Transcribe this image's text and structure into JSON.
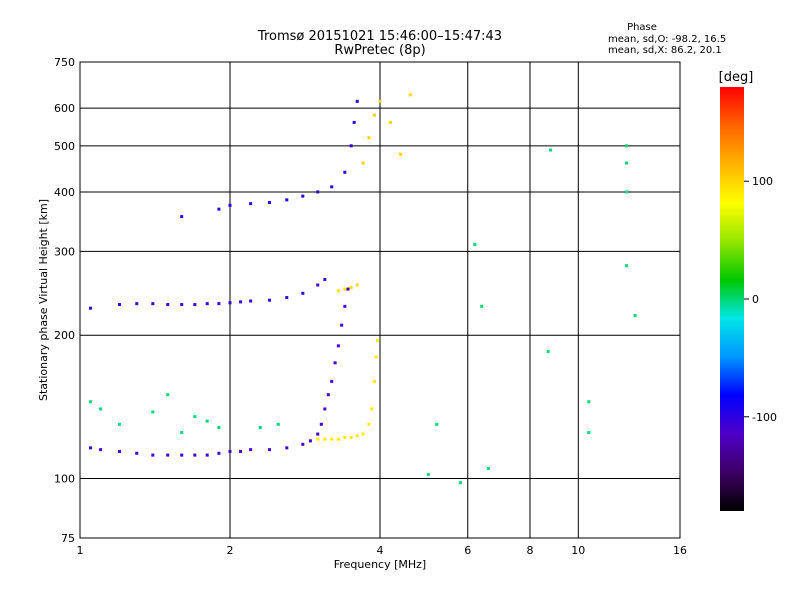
{
  "chart_data": {
    "type": "scatter",
    "title": "Tromsø 20151021 15:46:00–15:47:43",
    "subtitle": "RwPretec (8p)",
    "xlabel": "Frequency [MHz]",
    "ylabel": "Stationary phase Virtual Height [km]",
    "x_scale": "log",
    "y_scale": "log",
    "xlim": [
      1,
      16
    ],
    "ylim": [
      75,
      750
    ],
    "x_ticks": [
      1,
      2,
      4,
      6,
      8,
      10,
      16
    ],
    "y_ticks": [
      75,
      100,
      200,
      300,
      400,
      500,
      600,
      750
    ],
    "grid": true,
    "phase_box": {
      "title": "Phase",
      "line1": "mean, sd,O:  -98.2, 16.5",
      "line2": "mean, sd,X:  86.2, 20.1"
    },
    "colorbar": {
      "label": "[deg]",
      "range": [
        -180,
        180
      ],
      "ticks": [
        100,
        0,
        -100
      ],
      "colors": [
        "#000000",
        "#3c0064",
        "#5000c8",
        "#0000ff",
        "#0096ff",
        "#00e6e6",
        "#00c800",
        "#96e600",
        "#ffff00",
        "#ffb400",
        "#ff6400",
        "#ff0000"
      ]
    },
    "series": [
      {
        "trace": "o-mode-F-low",
        "points": [
          [
            1.05,
            116
          ],
          [
            1.1,
            115
          ],
          [
            1.2,
            114
          ],
          [
            1.3,
            113
          ],
          [
            1.4,
            112
          ],
          [
            1.5,
            112
          ],
          [
            1.6,
            112
          ],
          [
            1.7,
            112
          ],
          [
            1.8,
            112
          ],
          [
            1.9,
            113
          ],
          [
            2.0,
            114
          ],
          [
            2.1,
            114
          ],
          [
            2.2,
            115
          ],
          [
            2.4,
            115
          ],
          [
            2.6,
            116
          ],
          [
            2.8,
            118
          ],
          [
            2.9,
            120
          ],
          [
            3.0,
            124
          ],
          [
            3.05,
            130
          ],
          [
            3.1,
            140
          ],
          [
            3.15,
            150
          ],
          [
            3.2,
            160
          ],
          [
            3.25,
            175
          ],
          [
            3.3,
            190
          ],
          [
            3.35,
            210
          ],
          [
            3.4,
            230
          ],
          [
            3.45,
            250
          ]
        ],
        "phase": -110
      },
      {
        "trace": "x-mode-F-low",
        "points": [
          [
            3.0,
            121
          ],
          [
            3.1,
            121
          ],
          [
            3.2,
            121
          ],
          [
            3.3,
            121
          ],
          [
            3.4,
            122
          ],
          [
            3.5,
            122
          ],
          [
            3.6,
            123
          ],
          [
            3.7,
            124
          ],
          [
            3.8,
            130
          ],
          [
            3.85,
            140
          ],
          [
            3.9,
            160
          ],
          [
            3.93,
            180
          ],
          [
            3.95,
            195
          ]
        ],
        "phase": 90
      },
      {
        "trace": "o-mode-F-high",
        "points": [
          [
            1.05,
            228
          ],
          [
            1.2,
            232
          ],
          [
            1.3,
            233
          ],
          [
            1.4,
            233
          ],
          [
            1.5,
            232
          ],
          [
            1.6,
            232
          ],
          [
            1.7,
            232
          ],
          [
            1.8,
            233
          ],
          [
            1.9,
            233
          ],
          [
            2.0,
            234
          ],
          [
            2.1,
            235
          ],
          [
            2.2,
            236
          ],
          [
            2.4,
            237
          ],
          [
            2.6,
            240
          ],
          [
            2.8,
            245
          ],
          [
            3.0,
            255
          ],
          [
            3.1,
            262
          ]
        ],
        "phase": -105
      },
      {
        "trace": "x-mode-F-high",
        "points": [
          [
            3.3,
            248
          ],
          [
            3.4,
            250
          ],
          [
            3.5,
            252
          ],
          [
            3.6,
            255
          ]
        ],
        "phase": 95
      },
      {
        "trace": "o-mode-upper",
        "points": [
          [
            1.6,
            355
          ],
          [
            1.9,
            368
          ],
          [
            2.0,
            375
          ],
          [
            2.2,
            378
          ],
          [
            2.4,
            380
          ],
          [
            2.6,
            385
          ],
          [
            2.8,
            392
          ],
          [
            3.0,
            400
          ],
          [
            3.2,
            410
          ],
          [
            3.4,
            440
          ],
          [
            3.5,
            500
          ],
          [
            3.55,
            560
          ],
          [
            3.6,
            620
          ]
        ],
        "phase": -100
      },
      {
        "trace": "x-mode-upper",
        "points": [
          [
            3.7,
            460
          ],
          [
            3.8,
            520
          ],
          [
            3.9,
            580
          ],
          [
            4.0,
            620
          ],
          [
            4.2,
            560
          ],
          [
            4.4,
            480
          ],
          [
            4.6,
            640
          ]
        ],
        "phase": 100
      },
      {
        "trace": "scattered",
        "points": [
          [
            1.05,
            145
          ],
          [
            1.1,
            140
          ],
          [
            1.2,
            130
          ],
          [
            1.4,
            138
          ],
          [
            1.5,
            150
          ],
          [
            1.6,
            125
          ],
          [
            1.7,
            135
          ],
          [
            1.8,
            132
          ],
          [
            1.9,
            128
          ],
          [
            2.3,
            128
          ],
          [
            2.5,
            130
          ],
          [
            5.0,
            102
          ],
          [
            5.2,
            130
          ],
          [
            5.8,
            98
          ],
          [
            6.2,
            310
          ],
          [
            6.4,
            230
          ],
          [
            6.6,
            105
          ],
          [
            8.7,
            185
          ],
          [
            8.8,
            490
          ],
          [
            10.5,
            145
          ],
          [
            10.5,
            125
          ],
          [
            12.5,
            500
          ],
          [
            12.5,
            460
          ],
          [
            12.5,
            400
          ],
          [
            12.5,
            280
          ],
          [
            13.0,
            220
          ]
        ],
        "phase": 0
      }
    ]
  }
}
